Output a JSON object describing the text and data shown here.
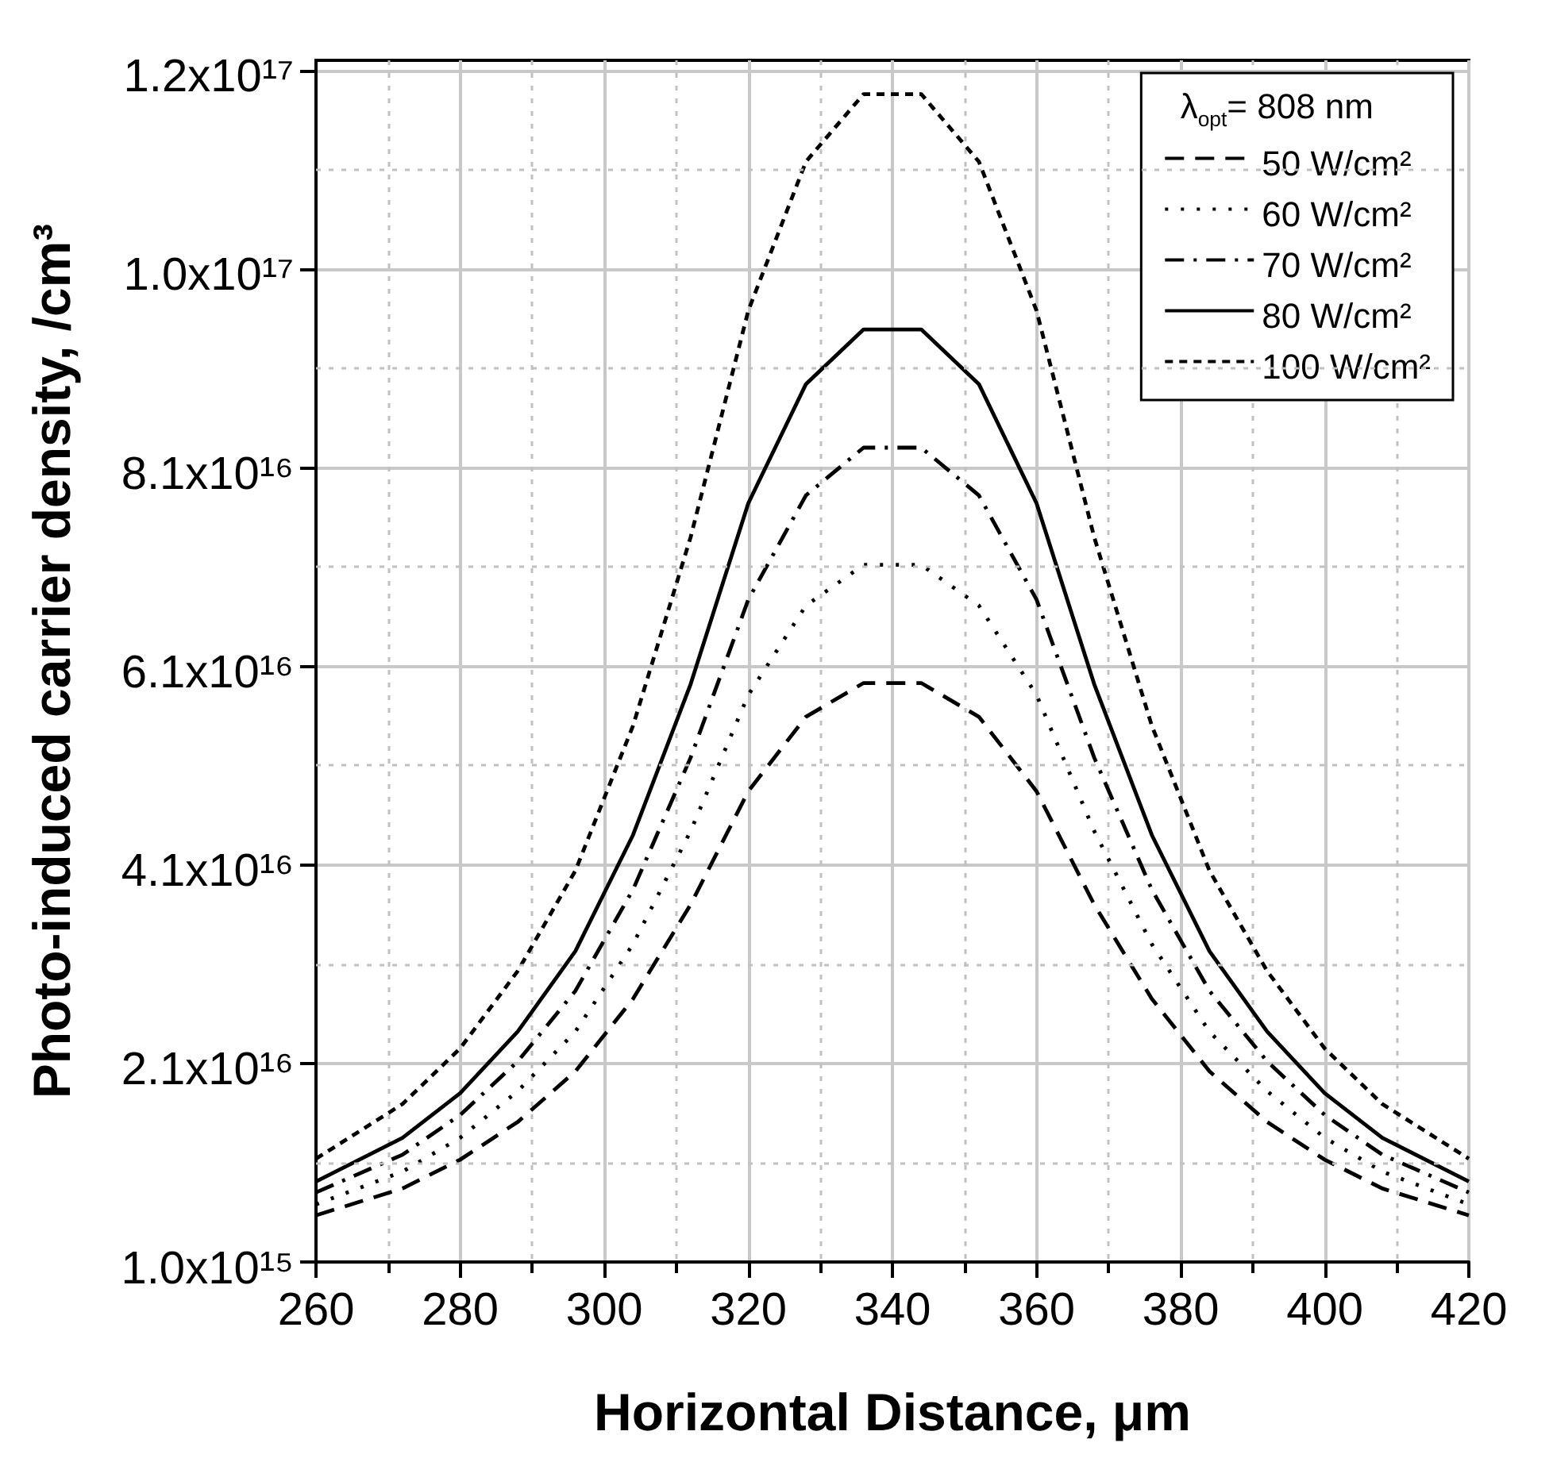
{
  "chart_data": {
    "type": "line",
    "xlabel": "Horizontal Distance, μm",
    "ylabel": "Photo-induced carrier density, /cm³",
    "legend_title": "λ$_{opt}$= 808 nm",
    "x": [
      260,
      272,
      280,
      288,
      296,
      304,
      312,
      320,
      328,
      336,
      344,
      352,
      360,
      368,
      376,
      384,
      392,
      400,
      408,
      420
    ],
    "series": [
      {
        "name": "50 W/cm²",
        "color": "#000000",
        "line_style": "dashed",
        "values": [
          5700000000000000.0,
          8400000000000000.0,
          1.13e+16,
          1.51e+16,
          2.02e+16,
          2.75e+16,
          3.7e+16,
          4.84e+16,
          5.59e+16,
          5.93e+16,
          5.93e+16,
          5.59e+16,
          4.84e+16,
          3.7e+16,
          2.75e+16,
          2.02e+16,
          1.51e+16,
          1.13e+16,
          8400000000000000.0,
          5700000000000000.0
        ]
      },
      {
        "name": "60 W/cm²",
        "color": "#000000",
        "line_style": "dotted",
        "values": [
          6800000000000000.0,
          1.01e+16,
          1.35e+16,
          1.82e+16,
          2.42e+16,
          3.3e+16,
          4.44e+16,
          5.81e+16,
          6.71e+16,
          7.12e+16,
          7.12e+16,
          6.71e+16,
          5.81e+16,
          4.44e+16,
          3.3e+16,
          2.42e+16,
          1.82e+16,
          1.35e+16,
          1.01e+16,
          6800000000000000.0
        ]
      },
      {
        "name": "70 W/cm²",
        "color": "#000000",
        "line_style": "dashdot",
        "values": [
          8000000000000000.0,
          1.18e+16,
          1.58e+16,
          2.12e+16,
          2.83e+16,
          3.85e+16,
          5.18e+16,
          6.77e+16,
          7.82e+16,
          8.3e+16,
          8.3e+16,
          7.82e+16,
          6.77e+16,
          5.18e+16,
          3.85e+16,
          2.83e+16,
          2.12e+16,
          1.58e+16,
          1.18e+16,
          8000000000000000.0
        ]
      },
      {
        "name": "80 W/cm²",
        "color": "#000000",
        "line_style": "solid",
        "values": [
          9100000000000000.0,
          1.35e+16,
          1.8e+16,
          2.42e+16,
          3.23e+16,
          4.4e+16,
          5.92e+16,
          7.74e+16,
          8.94e+16,
          9.49e+16,
          9.49e+16,
          8.94e+16,
          7.74e+16,
          5.92e+16,
          4.4e+16,
          3.23e+16,
          2.42e+16,
          1.8e+16,
          1.35e+16,
          9100000000000000.0
        ]
      },
      {
        "name": "100 W/cm²",
        "color": "#000000",
        "line_style": "shortdash",
        "values": [
          1.14e+16,
          1.69e+16,
          2.25e+16,
          3.03e+16,
          4.04e+16,
          5.5e+16,
          7.4e+16,
          9.68e+16,
          1.118e+17,
          1.186e+17,
          1.186e+17,
          1.118e+17,
          9.68e+16,
          7.4e+16,
          5.5e+16,
          4.04e+16,
          3.03e+16,
          2.25e+16,
          1.69e+16,
          1.14e+16
        ]
      }
    ],
    "xlim": [
      260,
      420
    ],
    "xticks": [
      260,
      280,
      300,
      320,
      340,
      360,
      380,
      400,
      420
    ],
    "ylim": [
      1000000000000000.0,
      1.22e+17
    ],
    "yticks": [
      {
        "value": 1000000000000000.0,
        "label": "1.0x10¹⁵"
      },
      {
        "value": 2.1e+16,
        "label": "2.1x10¹⁶"
      },
      {
        "value": 4.1e+16,
        "label": "4.1x10¹⁶"
      },
      {
        "value": 6.1e+16,
        "label": "6.1x10¹⁶"
      },
      {
        "value": 8.1e+16,
        "label": "8.1x10¹⁶"
      },
      {
        "value": 1.01e+17,
        "label": "1.0x10¹⁷"
      },
      {
        "value": 1.21e+17,
        "label": "1.2x10¹⁷"
      }
    ],
    "grid": true,
    "legend": "top right",
    "marker": "none"
  }
}
